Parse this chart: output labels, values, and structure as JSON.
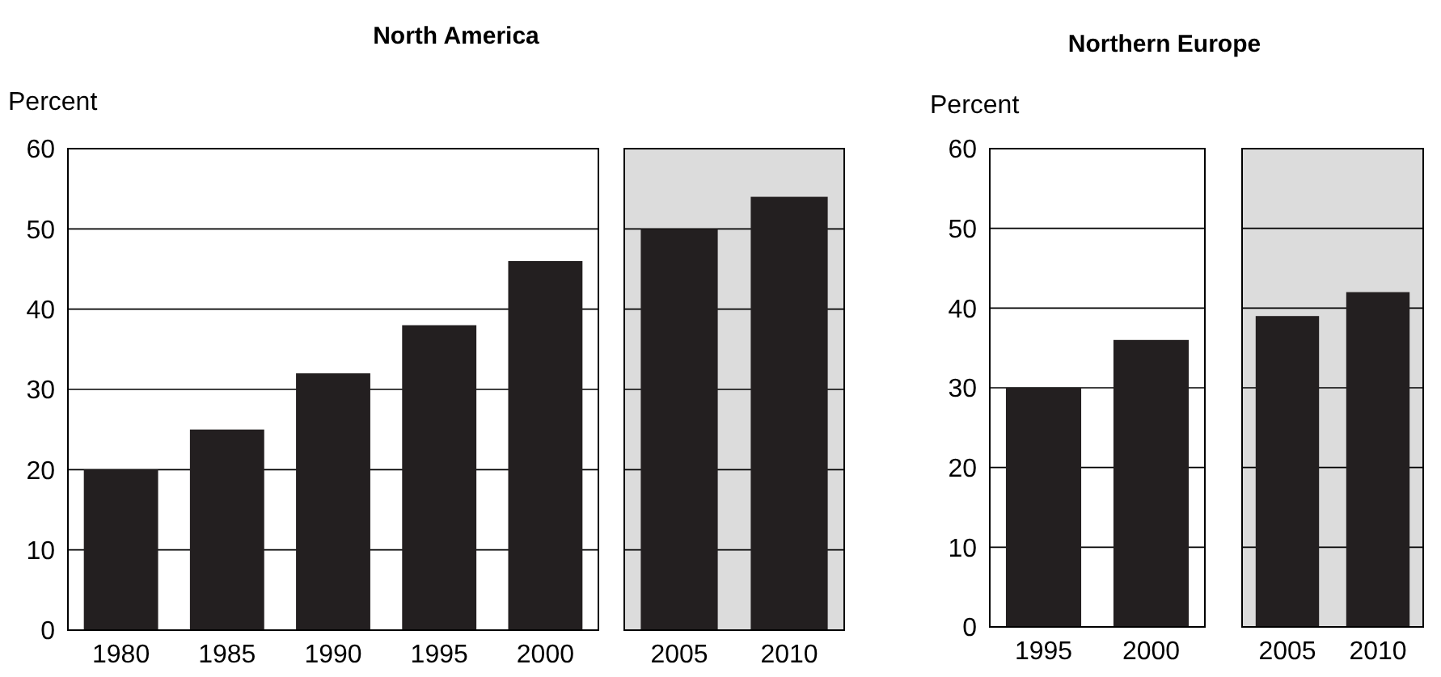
{
  "chart_data": [
    {
      "type": "bar",
      "title": "North America",
      "ylabel": "Percent",
      "categories": [
        "1980",
        "1985",
        "1990",
        "1995",
        "2000"
      ],
      "values": [
        20,
        25,
        32,
        38,
        46
      ],
      "color": "#231f20",
      "ylim": [
        0,
        60
      ],
      "yticks": [
        0,
        10,
        20,
        30,
        40,
        50,
        60
      ],
      "grid": "y"
    },
    {
      "type": "bar",
      "categories": [
        "2005",
        "2010"
      ],
      "values": [
        50,
        54
      ],
      "color": "#231f20",
      "ylim": [
        0,
        60
      ],
      "yticks": [
        0,
        10,
        20,
        30,
        40,
        50,
        60
      ],
      "grid": "y",
      "tick_labels": "x",
      "bands": [
        {
          "axis": "y",
          "from": 0,
          "to": 60,
          "color": "#dcdcdc"
        }
      ]
    },
    {
      "type": "bar",
      "title": "Northern Europe",
      "ylabel": "Percent",
      "categories": [
        "1995",
        "2000"
      ],
      "values": [
        30,
        36
      ],
      "color": "#231f20",
      "ylim": [
        0,
        60
      ],
      "yticks": [
        0,
        10,
        20,
        30,
        40,
        50,
        60
      ],
      "grid": "y"
    },
    {
      "type": "bar",
      "categories": [
        "2005",
        "2010"
      ],
      "values": [
        39,
        42
      ],
      "color": "#231f20",
      "ylim": [
        0,
        60
      ],
      "yticks": [
        0,
        10,
        20,
        30,
        40,
        50,
        60
      ],
      "grid": "y",
      "tick_labels": "x",
      "bands": [
        {
          "axis": "y",
          "from": 0,
          "to": 60,
          "color": "#dcdcdc"
        }
      ]
    }
  ]
}
